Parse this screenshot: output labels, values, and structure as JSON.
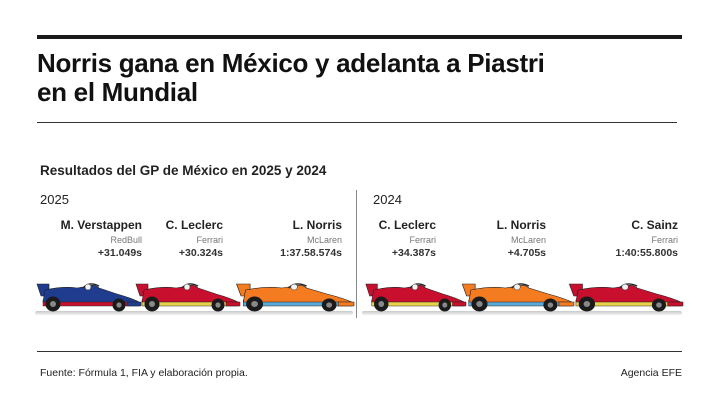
{
  "title": {
    "line1": "Norris gana en México y adelanta a Piastri",
    "line2": "en el Mundial"
  },
  "subtitle": "Resultados del GP de México en 2025 y 2024",
  "seasons": [
    {
      "year": "2025",
      "results": [
        {
          "driver": "M. Verstappen",
          "team": "RedBull",
          "gap": "+31.049s",
          "car_color": "#1f3c8f",
          "accent": "#c8102e"
        },
        {
          "driver": "C. Leclerc",
          "team": "Ferrari",
          "gap": "+30.324s",
          "car_color": "#c8102e",
          "accent": "#e8d24a"
        },
        {
          "driver": "L. Norris",
          "team": "McLaren",
          "gap": "1:37.58.574s",
          "car_color": "#f47b20",
          "accent": "#5aa9d6"
        }
      ]
    },
    {
      "year": "2024",
      "results": [
        {
          "driver": "C. Leclerc",
          "team": "Ferrari",
          "gap": "+34.387s",
          "car_color": "#c8102e",
          "accent": "#e8d24a"
        },
        {
          "driver": "L. Norris",
          "team": "McLaren",
          "gap": "+4.705s",
          "car_color": "#f47b20",
          "accent": "#5aa9d6"
        },
        {
          "driver": "C. Sainz",
          "team": "Ferrari",
          "gap": "1:40:55.800s",
          "car_color": "#c8102e",
          "accent": "#e8d24a"
        }
      ]
    }
  ],
  "footer": {
    "source": "Fuente: Fórmula 1, FIA y elaboración propia.",
    "credit": "Agencia EFE"
  }
}
